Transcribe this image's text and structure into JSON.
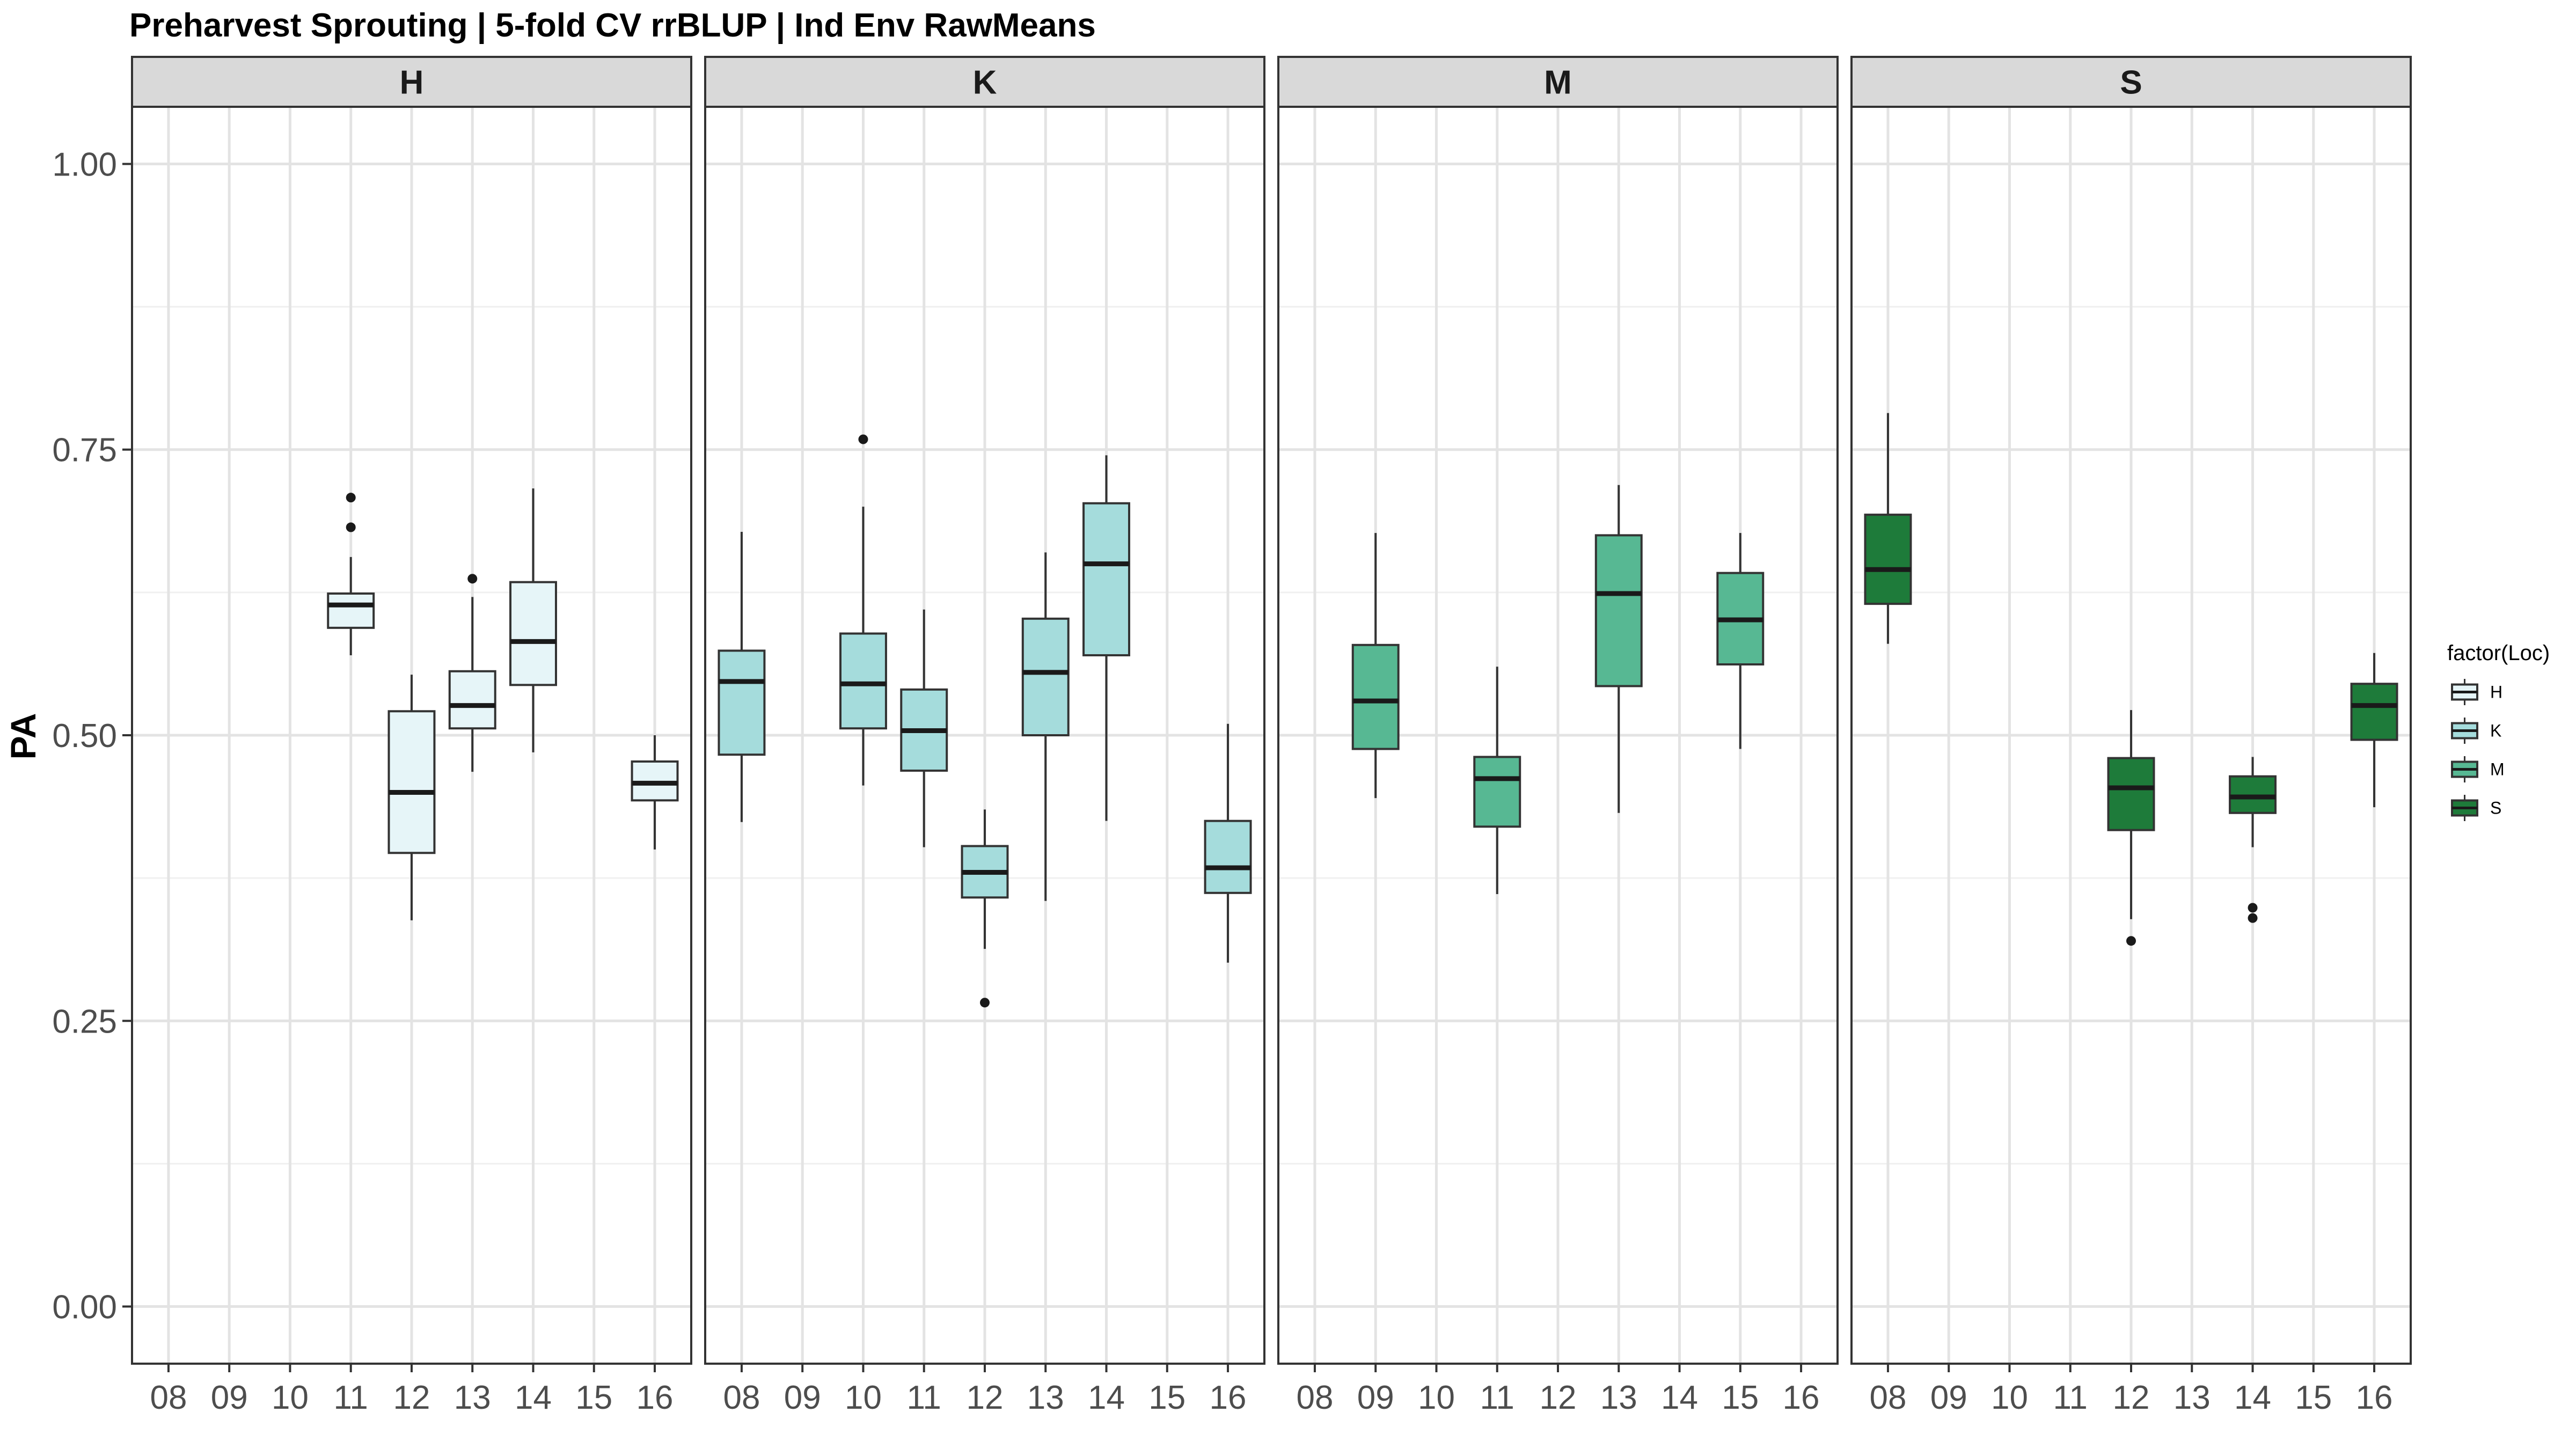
{
  "chart_data": {
    "type": "boxplot",
    "title": "Preharvest Sprouting | 5-fold CV rrBLUP | Ind Env RawMeans",
    "ylabel": "PA",
    "xlabel": "",
    "ylim": [
      -0.05,
      1.05
    ],
    "yticks": [
      0.0,
      0.25,
      0.5,
      0.75,
      1.0
    ],
    "ytick_labels": [
      "0.00",
      "0.25",
      "0.50",
      "0.75",
      "1.00"
    ],
    "categories": [
      "08",
      "09",
      "10",
      "11",
      "12",
      "13",
      "14",
      "15",
      "16"
    ],
    "grid": true,
    "legend": {
      "title": "factor(Loc)",
      "position": "right",
      "items": [
        {
          "label": "H",
          "color": "#e6f5f8"
        },
        {
          "label": "K",
          "color": "#a5dcdc"
        },
        {
          "label": "M",
          "color": "#57b893"
        },
        {
          "label": "S",
          "color": "#1e7b3a"
        }
      ]
    },
    "panels": [
      {
        "label": "H",
        "color": "#e6f5f8",
        "boxes": [
          {
            "x": "11",
            "whisker_low": 0.57,
            "q1": 0.594,
            "median": 0.614,
            "q3": 0.624,
            "whisker_high": 0.656,
            "outliers": [
              0.708,
              0.682
            ]
          },
          {
            "x": "12",
            "whisker_low": 0.338,
            "q1": 0.397,
            "median": 0.45,
            "q3": 0.521,
            "whisker_high": 0.553,
            "outliers": []
          },
          {
            "x": "13",
            "whisker_low": 0.468,
            "q1": 0.506,
            "median": 0.526,
            "q3": 0.556,
            "whisker_high": 0.621,
            "outliers": [
              0.637
            ]
          },
          {
            "x": "14",
            "whisker_low": 0.485,
            "q1": 0.544,
            "median": 0.582,
            "q3": 0.634,
            "whisker_high": 0.716,
            "outliers": []
          },
          {
            "x": "16",
            "whisker_low": 0.4,
            "q1": 0.443,
            "median": 0.458,
            "q3": 0.477,
            "whisker_high": 0.5,
            "outliers": []
          }
        ]
      },
      {
        "label": "K",
        "color": "#a5dcdc",
        "boxes": [
          {
            "x": "08",
            "whisker_low": 0.424,
            "q1": 0.483,
            "median": 0.547,
            "q3": 0.574,
            "whisker_high": 0.678,
            "outliers": []
          },
          {
            "x": "10",
            "whisker_low": 0.456,
            "q1": 0.506,
            "median": 0.545,
            "q3": 0.589,
            "whisker_high": 0.7,
            "outliers": [
              0.759
            ]
          },
          {
            "x": "11",
            "whisker_low": 0.402,
            "q1": 0.469,
            "median": 0.504,
            "q3": 0.54,
            "whisker_high": 0.61,
            "outliers": []
          },
          {
            "x": "12",
            "whisker_low": 0.313,
            "q1": 0.358,
            "median": 0.38,
            "q3": 0.403,
            "whisker_high": 0.435,
            "outliers": [
              0.266
            ]
          },
          {
            "x": "13",
            "whisker_low": 0.355,
            "q1": 0.5,
            "median": 0.555,
            "q3": 0.602,
            "whisker_high": 0.66,
            "outliers": []
          },
          {
            "x": "14",
            "whisker_low": 0.425,
            "q1": 0.57,
            "median": 0.65,
            "q3": 0.703,
            "whisker_high": 0.745,
            "outliers": []
          },
          {
            "x": "16",
            "whisker_low": 0.301,
            "q1": 0.362,
            "median": 0.384,
            "q3": 0.425,
            "whisker_high": 0.51,
            "outliers": []
          }
        ]
      },
      {
        "label": "M",
        "color": "#57b893",
        "boxes": [
          {
            "x": "09",
            "whisker_low": 0.445,
            "q1": 0.488,
            "median": 0.53,
            "q3": 0.579,
            "whisker_high": 0.677,
            "outliers": []
          },
          {
            "x": "11",
            "whisker_low": 0.361,
            "q1": 0.42,
            "median": 0.462,
            "q3": 0.481,
            "whisker_high": 0.56,
            "outliers": []
          },
          {
            "x": "13",
            "whisker_low": 0.432,
            "q1": 0.543,
            "median": 0.624,
            "q3": 0.675,
            "whisker_high": 0.719,
            "outliers": []
          },
          {
            "x": "15",
            "whisker_low": 0.488,
            "q1": 0.562,
            "median": 0.601,
            "q3": 0.642,
            "whisker_high": 0.677,
            "outliers": []
          }
        ]
      },
      {
        "label": "S",
        "color": "#1e7b3a",
        "boxes": [
          {
            "x": "08",
            "whisker_low": 0.58,
            "q1": 0.615,
            "median": 0.645,
            "q3": 0.693,
            "whisker_high": 0.782,
            "outliers": []
          },
          {
            "x": "12",
            "whisker_low": 0.339,
            "q1": 0.417,
            "median": 0.454,
            "q3": 0.48,
            "whisker_high": 0.522,
            "outliers": [
              0.32
            ]
          },
          {
            "x": "14",
            "whisker_low": 0.402,
            "q1": 0.432,
            "median": 0.446,
            "q3": 0.464,
            "whisker_high": 0.481,
            "outliers": [
              0.349,
              0.34
            ]
          },
          {
            "x": "16",
            "whisker_low": 0.437,
            "q1": 0.496,
            "median": 0.526,
            "q3": 0.545,
            "whisker_high": 0.572,
            "outliers": []
          }
        ]
      }
    ]
  }
}
